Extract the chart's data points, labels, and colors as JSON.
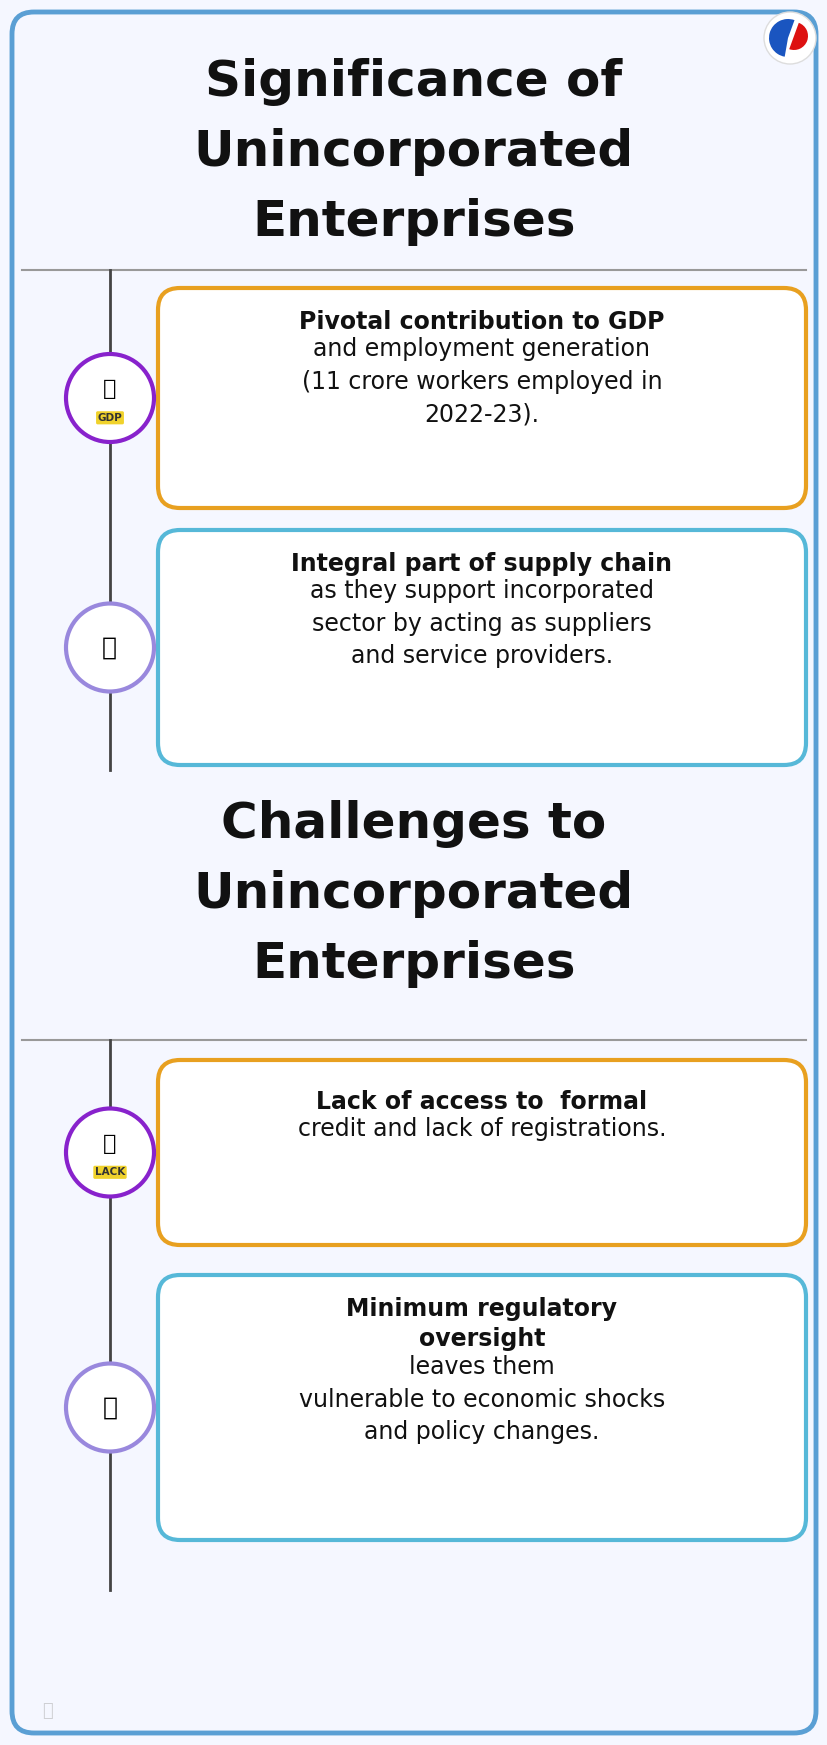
{
  "bg_color": "#f5f7ff",
  "outer_border_color": "#5a9fd4",
  "title1_lines": [
    "Significance of",
    "Unincorporated",
    "Enterprises"
  ],
  "title2_lines": [
    "Challenges to",
    "Unincorporated",
    "Enterprises"
  ],
  "title_fontsize": 36,
  "title_color": "#111111",
  "section_divider_color": "#999999",
  "vertical_line_color": "#444444",
  "card_orange_border": "#e8a020",
  "card_blue_border": "#56b8d8",
  "card_bg": "#ffffff",
  "circle1_color": "#8822cc",
  "circle2_color": "#9988dd",
  "card1_bold": "Pivotal contribution to GDP",
  "card1_normal": " and employment generation\n(11 crore workers employed in\n2022-23).",
  "card2_bold": "Integral part of supply",
  "card2_normal": " chain\nas they support incorporated\nsector by acting as suppliers\nand service providers.",
  "card3_bold": "Lack of access to",
  "card3_normal": " formal\ncredit and lack of registrations.",
  "card4_bold": "Minimum regulatory\noversight",
  "card4_normal": " leaves them\nvulnerable to economic shocks\nand policy changes.",
  "text_fontsize": 17,
  "bold_fontsize": 17
}
